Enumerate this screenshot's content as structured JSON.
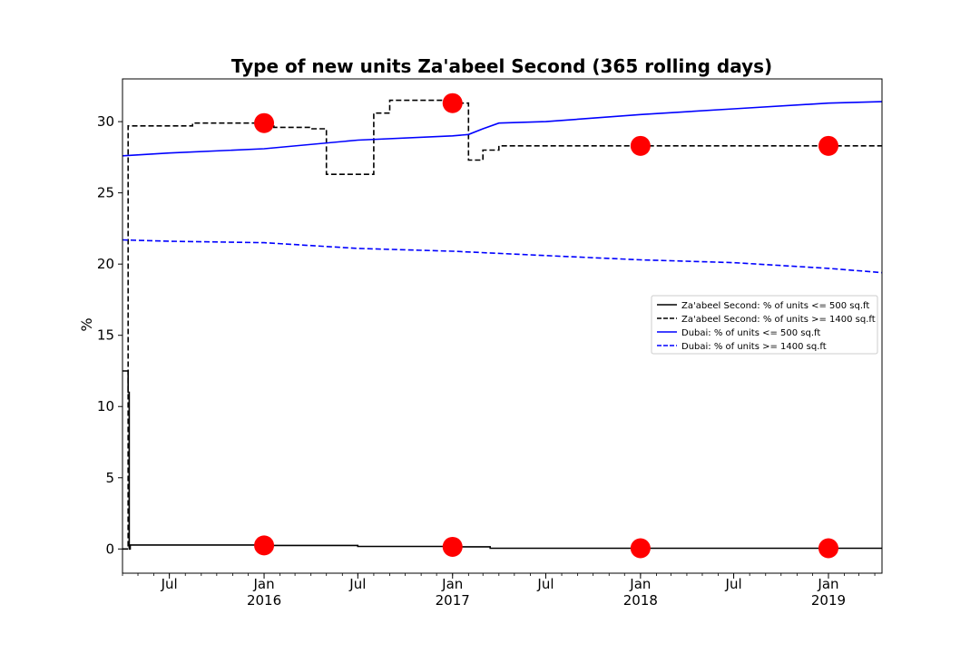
{
  "chart_data": {
    "type": "line",
    "title": "Type of new units Za'abeel Second (365 rolling days)",
    "xlabel": "",
    "ylabel": "%",
    "ylim": [
      -1.7,
      33.0
    ],
    "xlim": [
      "2015-04-01",
      "2019-04-15"
    ],
    "y_ticks": [
      0,
      5,
      10,
      15,
      20,
      25,
      30
    ],
    "x_ticks": [
      {
        "date": "2015-07-01",
        "label": "Jul",
        "sublabel": ""
      },
      {
        "date": "2016-01-01",
        "label": "Jan",
        "sublabel": "2016"
      },
      {
        "date": "2016-07-01",
        "label": "Jul",
        "sublabel": ""
      },
      {
        "date": "2017-01-01",
        "label": "Jan",
        "sublabel": "2017"
      },
      {
        "date": "2017-07-01",
        "label": "Jul",
        "sublabel": ""
      },
      {
        "date": "2018-01-01",
        "label": "Jan",
        "sublabel": "2018"
      },
      {
        "date": "2018-07-01",
        "label": "Jul",
        "sublabel": ""
      },
      {
        "date": "2019-01-01",
        "label": "Jan",
        "sublabel": "2019"
      }
    ],
    "grid": false,
    "legend_position": "center-right",
    "series": [
      {
        "name": "Za'abeel Second: % of units <= 500 sq.ft",
        "color": "#000000",
        "dash": "solid",
        "step": true,
        "x": [
          "2015-04-01",
          "2015-04-08",
          "2015-04-12",
          "2015-04-14",
          "2015-04-15",
          "2015-04-16",
          "2016-01-01",
          "2016-07-01",
          "2017-01-01",
          "2017-03-15",
          "2018-01-01",
          "2019-04-15"
        ],
        "y": [
          12.5,
          12.5,
          11.0,
          0.0,
          0.0,
          0.28,
          0.25,
          0.18,
          0.15,
          0.05,
          0.05,
          0.05
        ]
      },
      {
        "name": "Za'abeel Second: % of units >= 1400 sq.ft",
        "color": "#000000",
        "dash": "dashed",
        "step": true,
        "x": [
          "2015-04-01",
          "2015-04-10",
          "2015-04-12",
          "2015-06-01",
          "2015-08-15",
          "2016-01-01",
          "2016-01-20",
          "2016-04-01",
          "2016-05-01",
          "2016-06-15",
          "2016-08-01",
          "2016-09-01",
          "2016-12-15",
          "2017-01-01",
          "2017-02-01",
          "2017-03-01",
          "2017-04-01",
          "2018-01-01",
          "2019-04-15"
        ],
        "y": [
          0.0,
          0.0,
          29.7,
          29.7,
          29.9,
          29.9,
          29.6,
          29.5,
          26.3,
          26.3,
          30.6,
          31.5,
          31.3,
          31.3,
          27.3,
          28.0,
          28.3,
          28.3,
          28.3
        ]
      },
      {
        "name": "Dubai: % of units <= 500 sq.ft",
        "color": "#0000ff",
        "dash": "solid",
        "step": false,
        "x": [
          "2015-04-01",
          "2015-07-01",
          "2016-01-01",
          "2016-07-01",
          "2017-01-01",
          "2017-02-01",
          "2017-03-01",
          "2017-04-01",
          "2017-07-01",
          "2018-01-01",
          "2018-07-01",
          "2019-01-01",
          "2019-04-15"
        ],
        "y": [
          27.6,
          27.8,
          28.1,
          28.7,
          29.0,
          29.1,
          29.5,
          29.9,
          30.0,
          30.5,
          30.9,
          31.3,
          31.4
        ]
      },
      {
        "name": "Dubai: % of units >= 1400 sq.ft",
        "color": "#0000ff",
        "dash": "dashed",
        "step": false,
        "x": [
          "2015-04-01",
          "2015-07-01",
          "2016-01-01",
          "2016-07-01",
          "2017-01-01",
          "2017-07-01",
          "2018-01-01",
          "2018-07-01",
          "2019-01-01",
          "2019-04-15"
        ],
        "y": [
          21.7,
          21.6,
          21.5,
          21.1,
          20.9,
          20.6,
          20.3,
          20.1,
          19.7,
          19.4
        ]
      }
    ],
    "markers": {
      "color": "#ff0000",
      "points": [
        {
          "x": "2016-01-01",
          "y": 29.9
        },
        {
          "x": "2017-01-01",
          "y": 31.3
        },
        {
          "x": "2018-01-01",
          "y": 28.3
        },
        {
          "x": "2019-01-01",
          "y": 28.3
        },
        {
          "x": "2016-01-01",
          "y": 0.25
        },
        {
          "x": "2017-01-01",
          "y": 0.15
        },
        {
          "x": "2018-01-01",
          "y": 0.05
        },
        {
          "x": "2019-01-01",
          "y": 0.05
        }
      ]
    }
  }
}
